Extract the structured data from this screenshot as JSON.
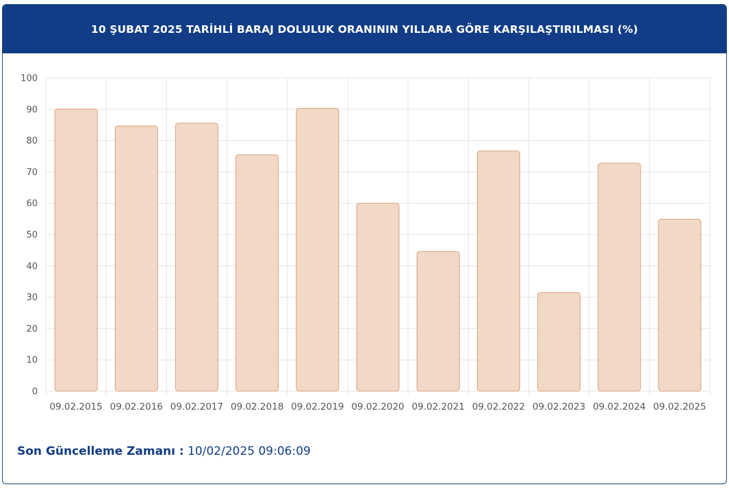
{
  "header": {
    "title": "10 ŞUBAT 2025 TARİHLİ BARAJ DOLULUK ORANININ YILLARA GÖRE KARŞILAŞTIRILMASI (%)"
  },
  "footer": {
    "label": "Son Güncelleme Zamanı :",
    "value": "10/02/2025 09:06:09"
  },
  "colors": {
    "header_bg": "#123d86",
    "bar_fill": "#f2d8c6",
    "bar_stroke": "#dca07c",
    "grid": "#e4e4e4"
  },
  "chart_data": {
    "type": "bar",
    "title": "10 ŞUBAT 2025 TARİHLİ BARAJ DOLULUK ORANININ YILLARA GÖRE KARŞILAŞTIRILMASI (%)",
    "categories": [
      "09.02.2015",
      "09.02.2016",
      "09.02.2017",
      "09.02.2018",
      "09.02.2019",
      "09.02.2020",
      "09.02.2021",
      "09.02.2022",
      "09.02.2023",
      "09.02.2024",
      "09.02.2025"
    ],
    "values": [
      90.1,
      84.7,
      85.6,
      75.5,
      90.3,
      60.0,
      44.6,
      76.7,
      31.5,
      72.8,
      54.9
    ],
    "yticks": [
      "0",
      "10",
      "20",
      "30",
      "40",
      "50",
      "60",
      "70",
      "80",
      "90",
      "100"
    ],
    "ylim": [
      0,
      100
    ],
    "grid": true
  }
}
